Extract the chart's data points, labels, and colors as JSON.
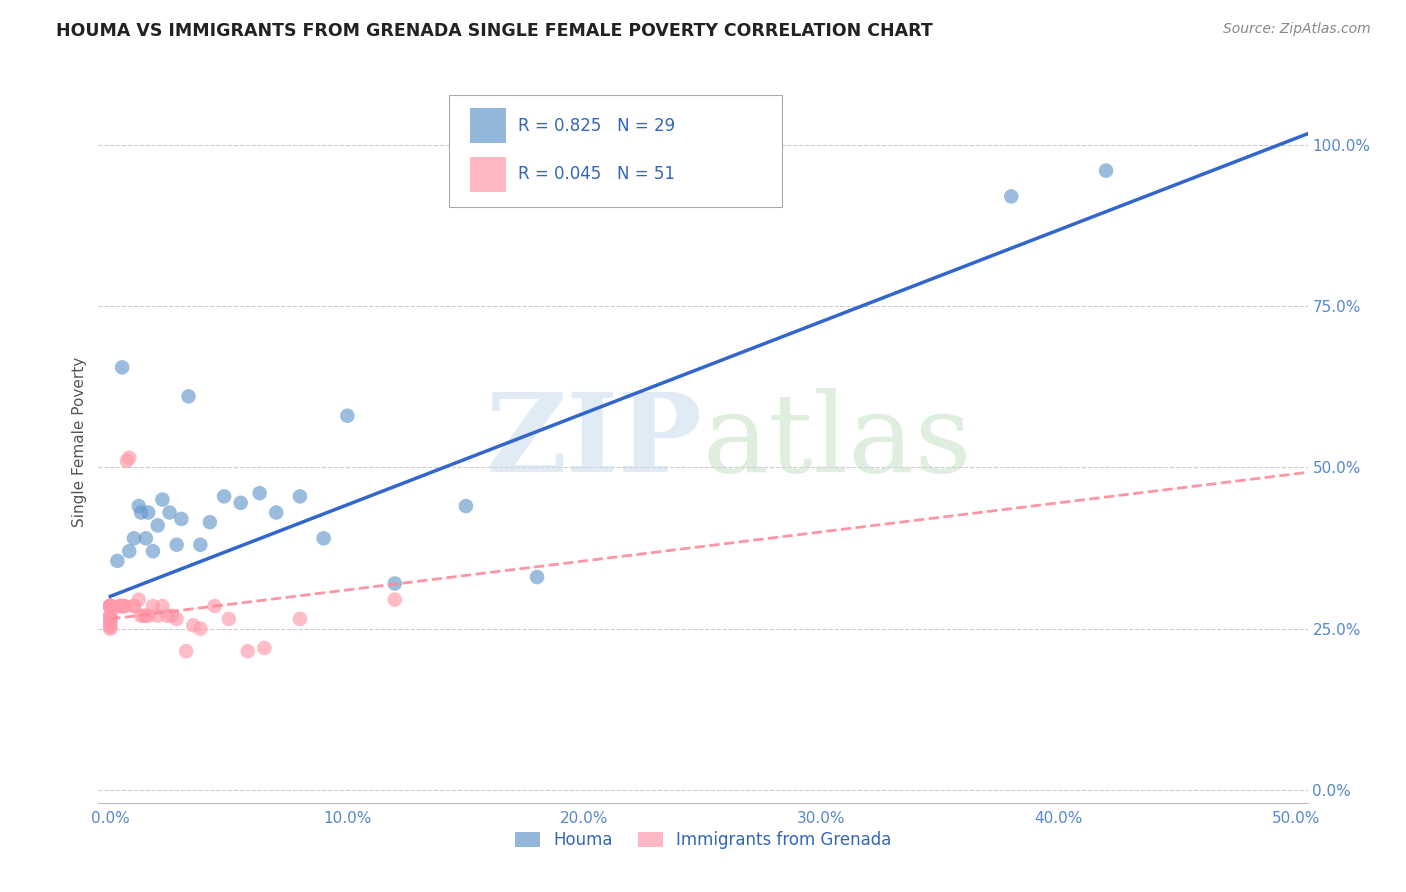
{
  "title": "HOUMA VS IMMIGRANTS FROM GRENADA SINGLE FEMALE POVERTY CORRELATION CHART",
  "source": "Source: ZipAtlas.com",
  "ylabel": "Single Female Poverty",
  "legend_label1": "Houma",
  "legend_label2": "Immigrants from Grenada",
  "R1": 0.825,
  "N1": 29,
  "R2": 0.045,
  "N2": 51,
  "xlim": [
    -0.005,
    0.505
  ],
  "ylim": [
    -0.02,
    1.1
  ],
  "xticks": [
    0.0,
    0.1,
    0.2,
    0.3,
    0.4,
    0.5
  ],
  "xticklabels": [
    "0.0%",
    "10.0%",
    "20.0%",
    "30.0%",
    "40.0%",
    "50.0%"
  ],
  "yticks": [
    0.0,
    0.25,
    0.5,
    0.75,
    1.0
  ],
  "yticklabels": [
    "0.0%",
    "25.0%",
    "50.0%",
    "75.0%",
    "100.0%"
  ],
  "color_houma": "#6699CC",
  "color_grenada": "#FF99AA",
  "houma_line_color": "#3366CC",
  "grenada_line_color": "#FF8899",
  "houma_line_a": 0.3,
  "houma_line_b": 1.42,
  "grenada_line_a": 0.265,
  "grenada_line_b": 0.45,
  "houma_x": [
    0.003,
    0.005,
    0.008,
    0.01,
    0.012,
    0.013,
    0.015,
    0.016,
    0.018,
    0.02,
    0.022,
    0.025,
    0.028,
    0.03,
    0.033,
    0.038,
    0.042,
    0.048,
    0.055,
    0.063,
    0.07,
    0.08,
    0.09,
    0.1,
    0.12,
    0.15,
    0.18,
    0.38,
    0.42
  ],
  "houma_y": [
    0.355,
    0.655,
    0.37,
    0.39,
    0.44,
    0.43,
    0.39,
    0.43,
    0.37,
    0.41,
    0.45,
    0.43,
    0.38,
    0.42,
    0.61,
    0.38,
    0.415,
    0.455,
    0.445,
    0.46,
    0.43,
    0.455,
    0.39,
    0.58,
    0.32,
    0.44,
    0.33,
    0.92,
    0.96
  ],
  "grenada_x": [
    0.0,
    0.0,
    0.0,
    0.0,
    0.0,
    0.0,
    0.0,
    0.0,
    0.0,
    0.0,
    0.0,
    0.0,
    0.0,
    0.0,
    0.0,
    0.0,
    0.0,
    0.0,
    0.0,
    0.0,
    0.004,
    0.004,
    0.005,
    0.005,
    0.005,
    0.006,
    0.006,
    0.007,
    0.008,
    0.01,
    0.01,
    0.012,
    0.013,
    0.014,
    0.015,
    0.016,
    0.018,
    0.02,
    0.022,
    0.024,
    0.026,
    0.028,
    0.032,
    0.035,
    0.038,
    0.044,
    0.05,
    0.058,
    0.065,
    0.08,
    0.12
  ],
  "grenada_y": [
    0.285,
    0.285,
    0.285,
    0.285,
    0.285,
    0.285,
    0.285,
    0.285,
    0.285,
    0.285,
    0.285,
    0.285,
    0.27,
    0.27,
    0.265,
    0.262,
    0.26,
    0.255,
    0.252,
    0.25,
    0.285,
    0.285,
    0.285,
    0.285,
    0.285,
    0.285,
    0.285,
    0.51,
    0.515,
    0.285,
    0.285,
    0.295,
    0.27,
    0.27,
    0.27,
    0.27,
    0.285,
    0.27,
    0.285,
    0.27,
    0.27,
    0.265,
    0.215,
    0.255,
    0.25,
    0.285,
    0.265,
    0.215,
    0.22,
    0.265,
    0.295
  ]
}
